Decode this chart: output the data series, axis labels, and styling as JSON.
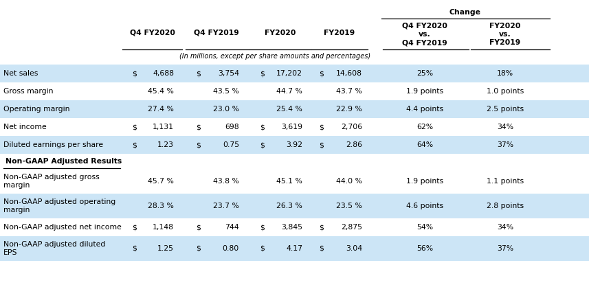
{
  "subheader": "(In millions, except per share amounts and percentages)",
  "change_label": "Change",
  "rows": [
    {
      "label": "Net sales",
      "dollar1": "$",
      "v1": "4,688",
      "dollar2": "$",
      "v2": "3,754",
      "dollar3": "$",
      "v3": "17,202",
      "dollar4": "$",
      "v4": "14,608",
      "ch1": "25%",
      "ch2": "18%",
      "bg": true,
      "bold": false,
      "section": false,
      "nlines": 1
    },
    {
      "label": "Gross margin",
      "dollar1": "",
      "v1": "45.4 %",
      "dollar2": "",
      "v2": "43.5 %",
      "dollar3": "",
      "v3": "44.7 %",
      "dollar4": "",
      "v4": "43.7 %",
      "ch1": "1.9 points",
      "ch2": "1.0 points",
      "bg": false,
      "bold": false,
      "section": false,
      "nlines": 1
    },
    {
      "label": "Operating margin",
      "dollar1": "",
      "v1": "27.4 %",
      "dollar2": "",
      "v2": "23.0 %",
      "dollar3": "",
      "v3": "25.4 %",
      "dollar4": "",
      "v4": "22.9 %",
      "ch1": "4.4 points",
      "ch2": "2.5 points",
      "bg": true,
      "bold": false,
      "section": false,
      "nlines": 1
    },
    {
      "label": "Net income",
      "dollar1": "$",
      "v1": "1,131",
      "dollar2": "$",
      "v2": "698",
      "dollar3": "$",
      "v3": "3,619",
      "dollar4": "$",
      "v4": "2,706",
      "ch1": "62%",
      "ch2": "34%",
      "bg": false,
      "bold": false,
      "section": false,
      "nlines": 1
    },
    {
      "label": "Diluted earnings per share",
      "dollar1": "$",
      "v1": "1.23",
      "dollar2": "$",
      "v2": "0.75",
      "dollar3": "$",
      "v3": "3.92",
      "dollar4": "$",
      "v4": "2.86",
      "ch1": "64%",
      "ch2": "37%",
      "bg": true,
      "bold": false,
      "section": false,
      "nlines": 1
    },
    {
      "label": "Non-GAAP Adjusted Results",
      "dollar1": "",
      "v1": "",
      "dollar2": "",
      "v2": "",
      "dollar3": "",
      "v3": "",
      "dollar4": "",
      "v4": "",
      "ch1": "",
      "ch2": "",
      "bg": false,
      "bold": true,
      "section": true,
      "nlines": 1
    },
    {
      "label": "Non-GAAP adjusted gross\nmargin",
      "dollar1": "",
      "v1": "45.7 %",
      "dollar2": "",
      "v2": "43.8 %",
      "dollar3": "",
      "v3": "45.1 %",
      "dollar4": "",
      "v4": "44.0 %",
      "ch1": "1.9 points",
      "ch2": "1.1 points",
      "bg": false,
      "bold": false,
      "section": false,
      "nlines": 2
    },
    {
      "label": "Non-GAAP adjusted operating\nmargin",
      "dollar1": "",
      "v1": "28.3 %",
      "dollar2": "",
      "v2": "23.7 %",
      "dollar3": "",
      "v3": "26.3 %",
      "dollar4": "",
      "v4": "23.5 %",
      "ch1": "4.6 points",
      "ch2": "2.8 points",
      "bg": true,
      "bold": false,
      "section": false,
      "nlines": 2
    },
    {
      "label": "Non-GAAP adjusted net income",
      "dollar1": "$",
      "v1": "1,148",
      "dollar2": "$",
      "v2": "744",
      "dollar3": "$",
      "v3": "3,845",
      "dollar4": "$",
      "v4": "2,875",
      "ch1": "54%",
      "ch2": "34%",
      "bg": false,
      "bold": false,
      "section": false,
      "nlines": 1
    },
    {
      "label": "Non-GAAP adjusted diluted\nEPS",
      "dollar1": "$",
      "v1": "1.25",
      "dollar2": "$",
      "v2": "0.80",
      "dollar3": "$",
      "v3": "4.17",
      "dollar4": "$",
      "v4": "3.04",
      "ch1": "56%",
      "ch2": "37%",
      "bg": true,
      "bold": false,
      "section": false,
      "nlines": 2
    }
  ],
  "col_headers": [
    "Q4 FY2020",
    "Q4 FY2019",
    "FY2020",
    "FY2019",
    "Q4 FY2020\nvs.\nQ4 FY2019",
    "FY2020\nvs.\nFY2019"
  ],
  "bg_color": "#cce5f6",
  "white_color": "#ffffff",
  "text_color": "#000000",
  "font_size": 7.8,
  "header_font_size": 7.8
}
